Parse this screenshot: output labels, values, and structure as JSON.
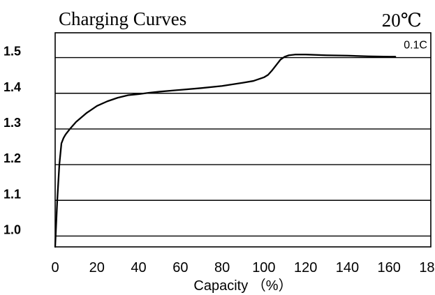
{
  "chart_data": {
    "type": "line",
    "title": "Charging Curves",
    "subtitle": "20℃",
    "xlabel": "Capacity （%）",
    "ylabel": "",
    "xlim": [
      0,
      180
    ],
    "ylim": [
      0.95,
      1.55
    ],
    "x_ticks": [
      "0",
      "20",
      "40",
      "60",
      "80",
      "100",
      "120",
      "140",
      "160",
      "180"
    ],
    "y_ticks": [
      "1.0",
      "1.1",
      "1.2",
      "1.3",
      "1.4",
      "1.5"
    ],
    "grid": true,
    "series": [
      {
        "name": "0.1C",
        "x": [
          0,
          1,
          2,
          3,
          4,
          5,
          7,
          10,
          15,
          20,
          25,
          30,
          35,
          40,
          45,
          50,
          60,
          70,
          80,
          90,
          95,
          100,
          102,
          104,
          106,
          108,
          110,
          112,
          115,
          120,
          130,
          140,
          150,
          160,
          163
        ],
        "y": [
          0.95,
          1.08,
          1.18,
          1.24,
          1.255,
          1.265,
          1.28,
          1.3,
          1.325,
          1.345,
          1.358,
          1.368,
          1.375,
          1.378,
          1.382,
          1.385,
          1.39,
          1.395,
          1.401,
          1.41,
          1.415,
          1.425,
          1.432,
          1.445,
          1.46,
          1.475,
          1.483,
          1.487,
          1.489,
          1.489,
          1.487,
          1.486,
          1.484,
          1.483,
          1.483
        ]
      }
    ]
  }
}
